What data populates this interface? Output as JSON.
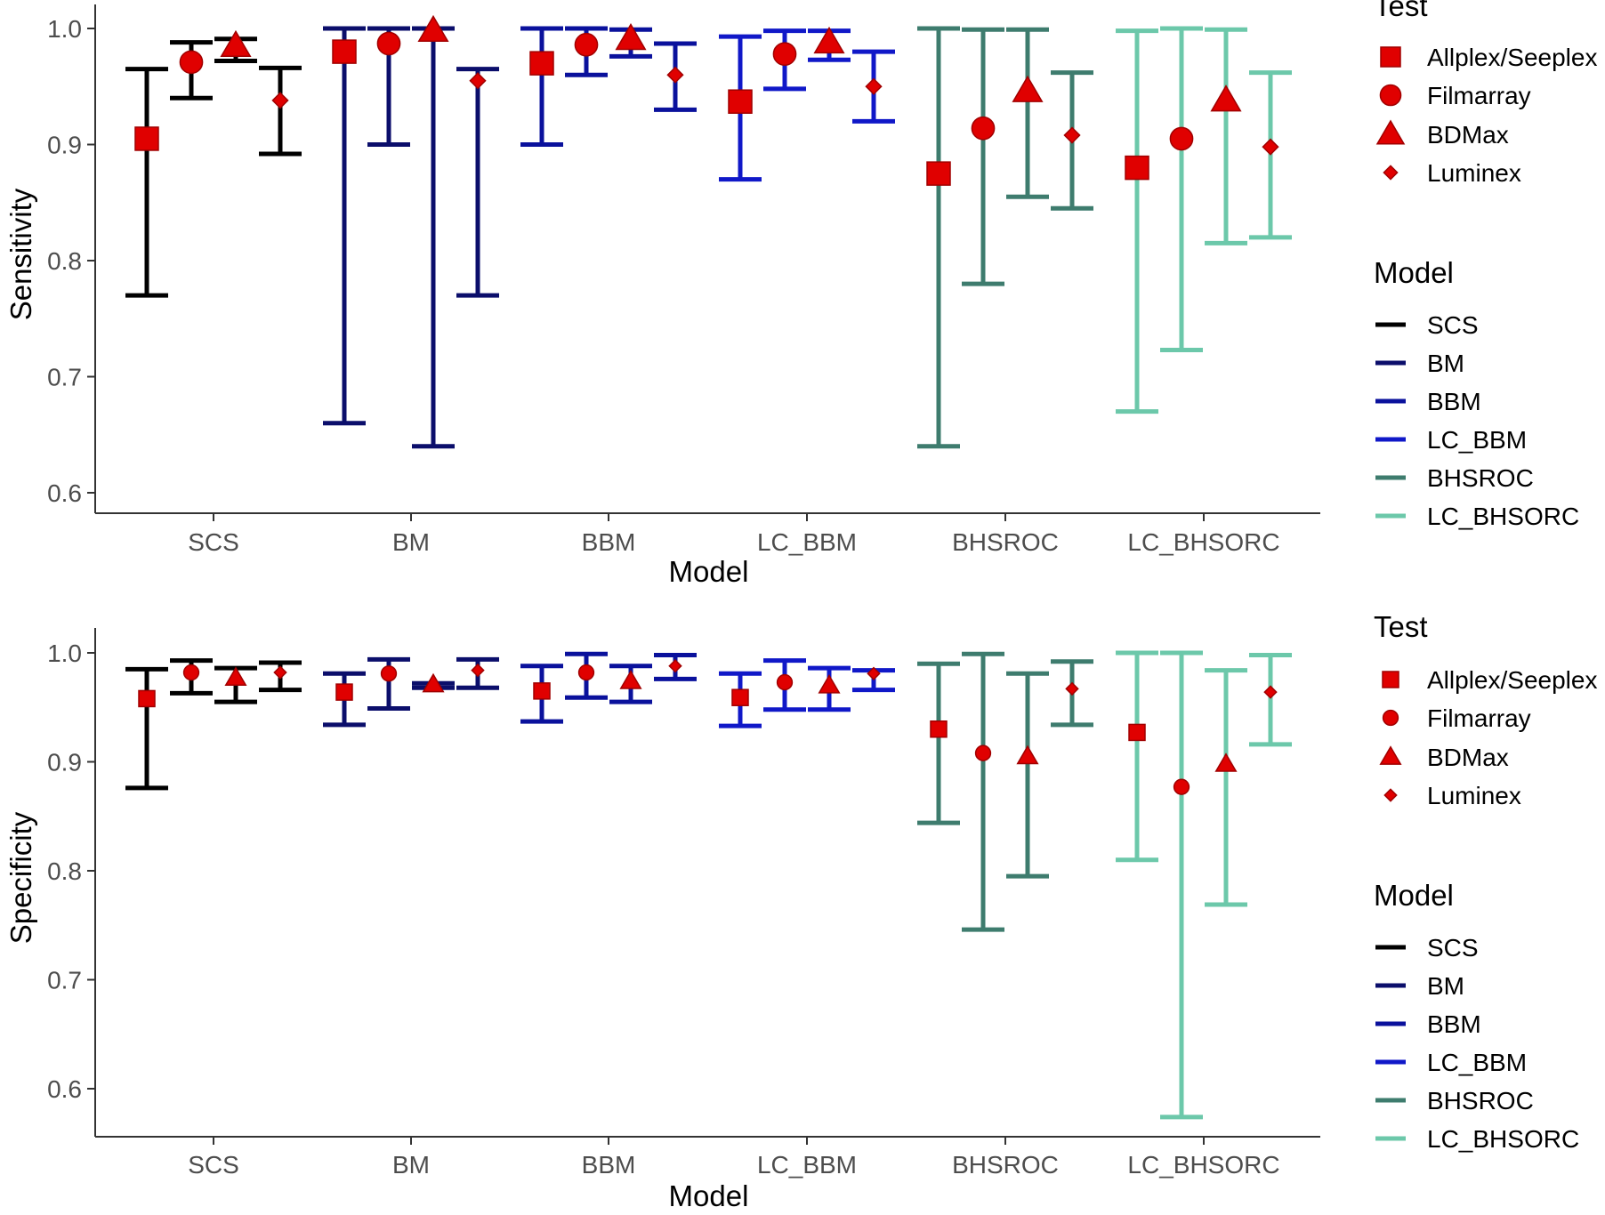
{
  "chart_data": [
    {
      "type": "errorbar",
      "xlabel": "Model",
      "ylabel": "Sensitivity",
      "ylim": [
        0.6,
        1.0
      ],
      "yticks": [
        "0.6",
        "0.7",
        "0.8",
        "0.9",
        "1.0"
      ],
      "categories": [
        "SCS",
        "BM",
        "BBM",
        "LC_BBM",
        "BHSROC",
        "LC_BHSORC"
      ],
      "series": [
        {
          "name": "Allplex/Seeplex",
          "marker": "square",
          "values": [
            0.905,
            0.98,
            0.97,
            0.937,
            0.875,
            0.88
          ],
          "lower": [
            0.77,
            0.66,
            0.9,
            0.87,
            0.64,
            0.67
          ],
          "upper": [
            0.965,
            1.0,
            1.0,
            0.993,
            1.0,
            0.998
          ]
        },
        {
          "name": "Filmarray",
          "marker": "circle",
          "values": [
            0.971,
            0.987,
            0.986,
            0.978,
            0.914,
            0.905
          ],
          "lower": [
            0.94,
            0.9,
            0.96,
            0.948,
            0.78,
            0.723
          ],
          "upper": [
            0.988,
            1.0,
            1.0,
            0.998,
            0.999,
            1.0
          ]
        },
        {
          "name": "BDMax",
          "marker": "triangle",
          "values": [
            0.985,
            0.998,
            0.991,
            0.988,
            0.946,
            0.938
          ],
          "lower": [
            0.972,
            0.64,
            0.976,
            0.973,
            0.855,
            0.815
          ],
          "upper": [
            0.991,
            1.0,
            0.999,
            0.998,
            0.999,
            0.999
          ]
        },
        {
          "name": "Luminex",
          "marker": "diamond",
          "values": [
            0.938,
            0.955,
            0.96,
            0.95,
            0.908,
            0.898
          ],
          "lower": [
            0.892,
            0.77,
            0.93,
            0.92,
            0.845,
            0.82
          ],
          "upper": [
            0.966,
            0.965,
            0.987,
            0.98,
            0.962,
            0.962
          ]
        }
      ]
    },
    {
      "type": "errorbar",
      "xlabel": "Model",
      "ylabel": "Specificity",
      "ylim": [
        0.6,
        1.0
      ],
      "yticks": [
        "0.6",
        "0.7",
        "0.8",
        "0.9",
        "1.0"
      ],
      "categories": [
        "SCS",
        "BM",
        "BBM",
        "LC_BBM",
        "BHSROC",
        "LC_BHSORC"
      ],
      "series": [
        {
          "name": "Allplex/Seeplex",
          "marker": "square",
          "values": [
            0.958,
            0.964,
            0.965,
            0.959,
            0.93,
            0.927
          ],
          "lower": [
            0.876,
            0.934,
            0.937,
            0.933,
            0.844,
            0.81
          ],
          "upper": [
            0.985,
            0.981,
            0.988,
            0.981,
            0.99,
            1.0
          ]
        },
        {
          "name": "Filmarray",
          "marker": "circle",
          "values": [
            0.982,
            0.981,
            0.982,
            0.973,
            0.908,
            0.877
          ],
          "lower": [
            0.963,
            0.949,
            0.959,
            0.948,
            0.746,
            0.574
          ],
          "upper": [
            0.993,
            0.994,
            0.999,
            0.993,
            0.999,
            1.0
          ]
        },
        {
          "name": "BDMax",
          "marker": "triangle",
          "values": [
            0.977,
            0.971,
            0.974,
            0.97,
            0.905,
            0.898
          ],
          "lower": [
            0.955,
            0.968,
            0.955,
            0.948,
            0.795,
            0.769
          ],
          "upper": [
            0.986,
            0.972,
            0.988,
            0.986,
            0.981,
            0.984
          ]
        },
        {
          "name": "Luminex",
          "marker": "diamond",
          "values": [
            0.982,
            0.984,
            0.988,
            0.981,
            0.967,
            0.964
          ],
          "lower": [
            0.966,
            0.968,
            0.976,
            0.966,
            0.934,
            0.916
          ],
          "upper": [
            0.991,
            0.994,
            0.998,
            0.984,
            0.992,
            0.998
          ]
        }
      ]
    }
  ],
  "legend": {
    "test_title": "Test",
    "test_items": [
      {
        "label": "Allplex/Seeplex",
        "marker": "square"
      },
      {
        "label": "Filmarray",
        "marker": "circle"
      },
      {
        "label": "BDMax",
        "marker": "triangle"
      },
      {
        "label": "Luminex",
        "marker": "diamond"
      }
    ],
    "model_title": "Model",
    "model_items": [
      {
        "label": "SCS",
        "color": "#000000"
      },
      {
        "label": "BM",
        "color": "#0B0E6B"
      },
      {
        "label": "BBM",
        "color": "#0A119C"
      },
      {
        "label": "LC_BBM",
        "color": "#1018C8"
      },
      {
        "label": "BHSROC",
        "color": "#3E7C6E"
      },
      {
        "label": "LC_BHSORC",
        "color": "#6CC8AA"
      }
    ]
  },
  "colors": {
    "marker_fill": "#E00000",
    "marker_stroke": "#A00000",
    "axis": "#333333"
  }
}
